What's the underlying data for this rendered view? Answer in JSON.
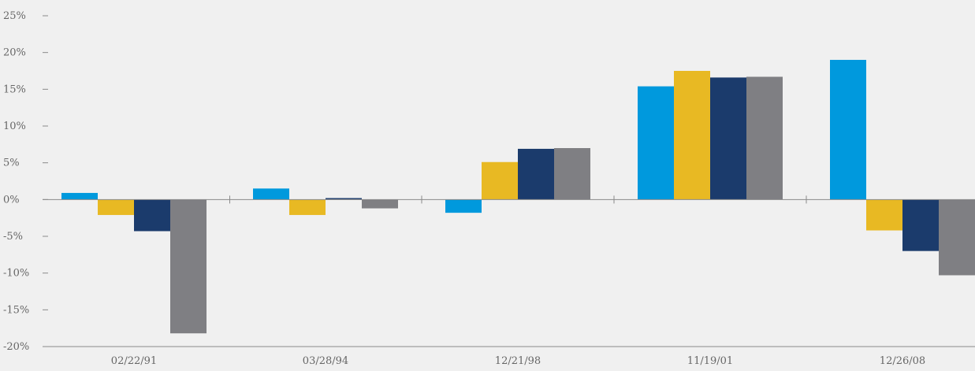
{
  "chart_data": {
    "type": "bar",
    "title": "",
    "xlabel": "",
    "ylabel": "",
    "ylim": [
      -20,
      25
    ],
    "yticks": [
      25,
      20,
      15,
      10,
      5,
      0,
      -5,
      -10,
      -15,
      -20
    ],
    "ytick_labels": [
      "25%",
      "20%",
      "15%",
      "10%",
      "5%",
      "0%",
      "-5%",
      "-10%",
      "-15%",
      "-20%"
    ],
    "grid": false,
    "legend": "none",
    "categories": [
      "02/22/91",
      "03/28/94",
      "12/21/98",
      "11/19/01",
      "12/26/08"
    ],
    "series": [
      {
        "color": "#0099dd",
        "values": [
          0.9,
          1.5,
          -1.8,
          15.4,
          19.0
        ]
      },
      {
        "color": "#e8b923",
        "values": [
          -2.1,
          -2.1,
          5.1,
          17.5,
          -4.2
        ]
      },
      {
        "color": "#1b3b6c",
        "values": [
          -4.3,
          0.2,
          6.9,
          16.6,
          -7.0
        ]
      },
      {
        "color": "#7f7f83",
        "values": [
          -18.2,
          -1.2,
          7.0,
          16.7,
          -10.3
        ]
      }
    ]
  }
}
